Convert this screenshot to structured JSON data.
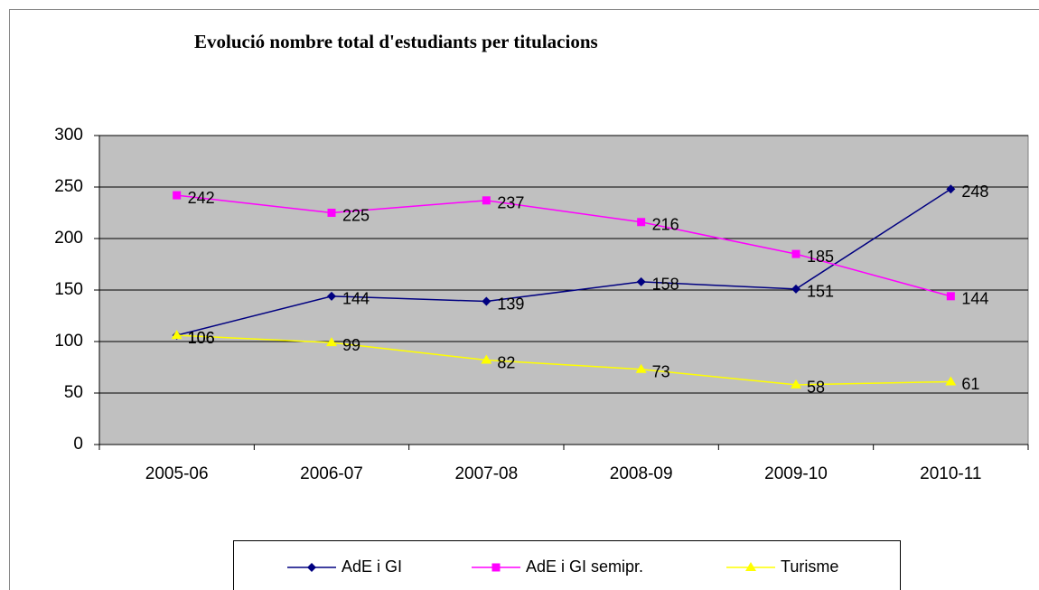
{
  "chart_data": {
    "type": "line",
    "title": "Evolució nombre total d'estudiants per titulacions",
    "categories": [
      "2005-06",
      "2006-07",
      "2007-08",
      "2008-09",
      "2009-10",
      "2010-11"
    ],
    "series": [
      {
        "name": "AdE i GI",
        "color": "#000080",
        "marker": "diamond",
        "values": [
          106,
          144,
          139,
          158,
          151,
          248
        ]
      },
      {
        "name": "AdE i GI semipr.",
        "color": "#ff00ff",
        "marker": "square",
        "values": [
          242,
          225,
          237,
          216,
          185,
          144
        ]
      },
      {
        "name": "Turisme",
        "color": "#ffff00",
        "marker": "triangle",
        "values": [
          106,
          99,
          82,
          73,
          58,
          61
        ]
      }
    ],
    "ylim": [
      0,
      300
    ],
    "yticks": [
      0,
      50,
      100,
      150,
      200,
      250,
      300
    ],
    "grid": true,
    "legend": "bottom",
    "plot_background": "#c0c0c0"
  }
}
